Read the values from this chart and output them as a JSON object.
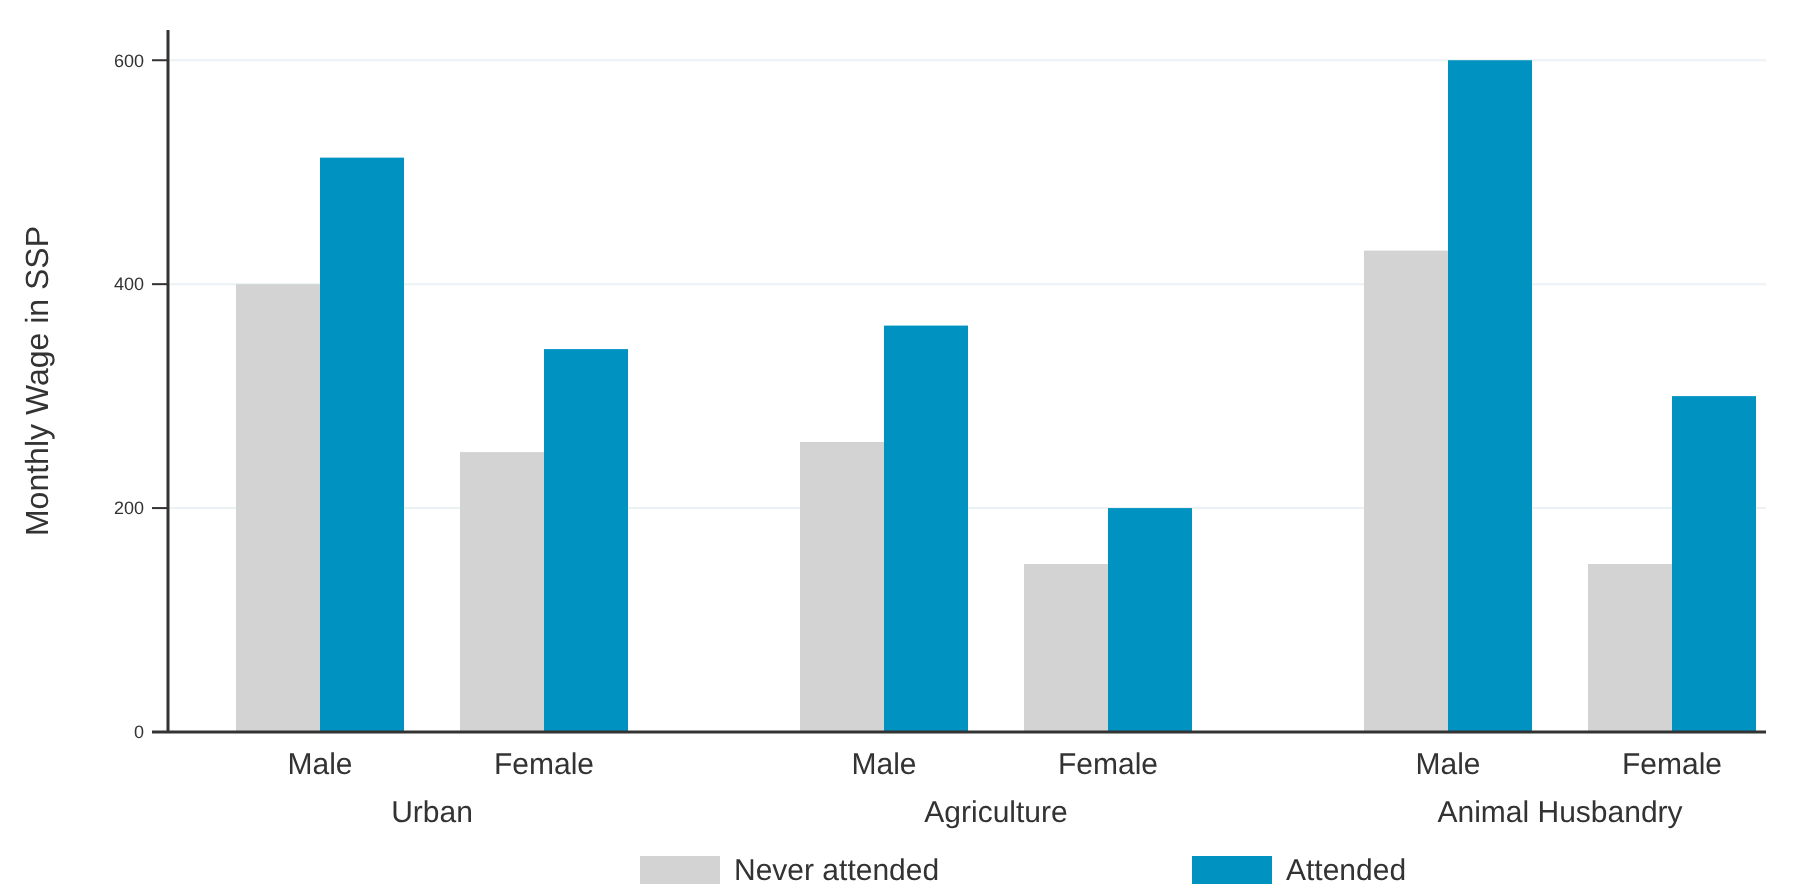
{
  "chart_data": {
    "type": "bar",
    "ylabel": "Monthly Wage in SSP",
    "categories": [
      "Male",
      "Female",
      "Male",
      "Female",
      "Male",
      "Female"
    ],
    "annotations": [
      "Urban",
      "Agriculture",
      "Animal Husbandry"
    ],
    "series": [
      {
        "name": "Never attended",
        "color": "#d3d3d3",
        "values": [
          400,
          250,
          259,
          150,
          430,
          150
        ]
      },
      {
        "name": "Attended",
        "color": "#0093c2",
        "values": [
          513,
          342,
          363,
          200,
          600,
          300
        ]
      }
    ],
    "ylim": [
      0,
      627
    ],
    "yticks": [
      0,
      200,
      400,
      600
    ],
    "grid": "y",
    "legend": "bottom"
  }
}
